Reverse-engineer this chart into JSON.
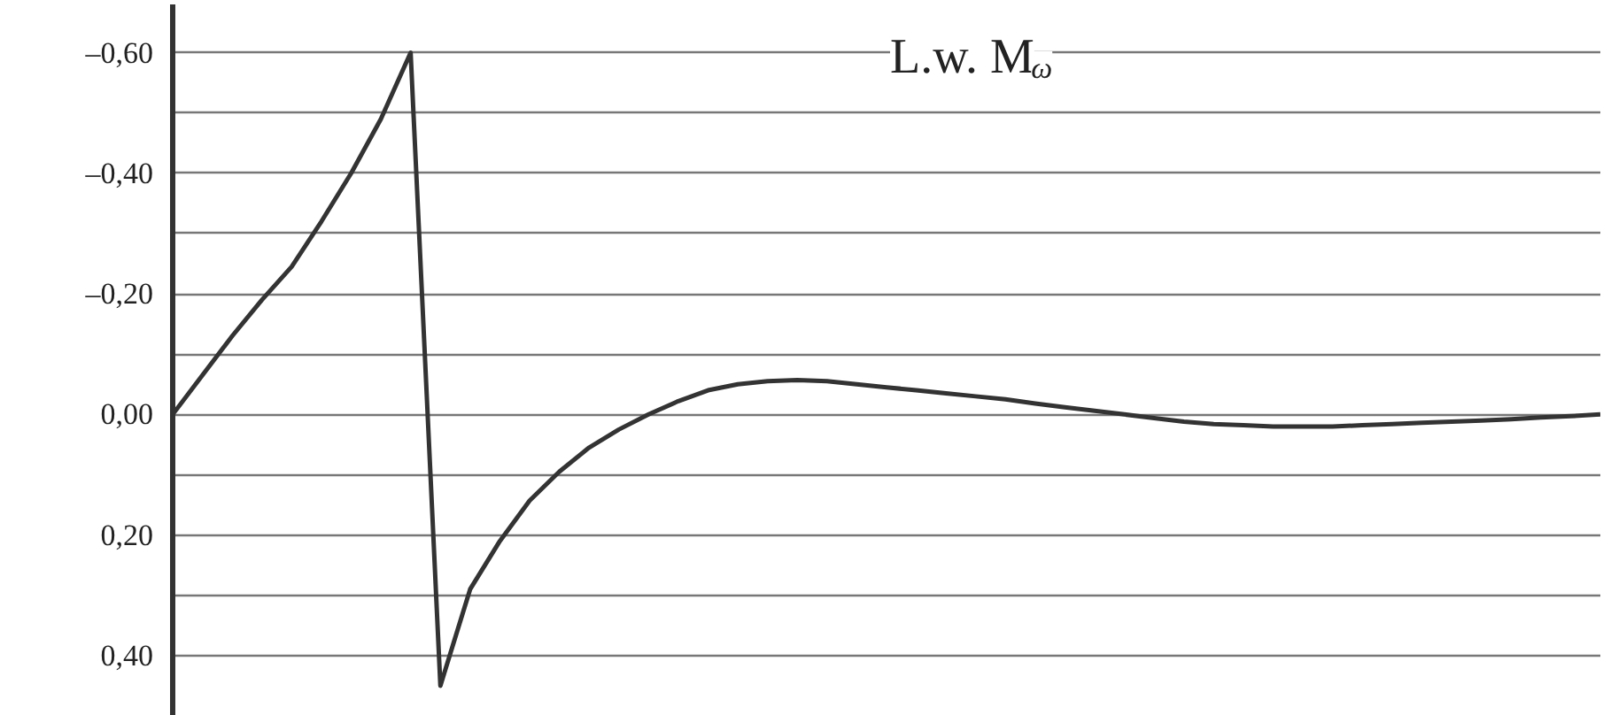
{
  "chart_data": {
    "type": "line",
    "title": "L.w. M$_{ω}$",
    "categories": [
      null,
      null,
      null,
      null,
      null,
      null,
      null,
      null,
      null,
      null,
      null,
      null,
      null,
      null,
      null,
      null,
      null,
      null,
      null,
      null,
      null,
      null,
      null,
      null,
      null,
      null,
      null,
      null,
      null,
      null,
      null,
      null,
      null,
      null,
      null,
      null,
      null,
      null,
      null,
      null,
      null,
      null,
      null,
      null,
      null,
      null,
      null,
      null,
      null
    ],
    "series": [
      {
        "color": "#333333",
        "values": [
          0,
          -0.065,
          -0.13,
          -0.19,
          -0.245,
          -0.32,
          -0.4,
          -0.49,
          -0.6,
          0.45,
          0.29,
          0.21,
          0.143,
          0.095,
          0.055,
          0.025,
          0,
          -0.022,
          -0.04,
          -0.05,
          -0.055,
          -0.057,
          -0.055,
          -0.05,
          -0.045,
          -0.04,
          -0.035,
          -0.03,
          -0.025,
          -0.018,
          -0.012,
          -0.006,
          0,
          0.006,
          0.012,
          0.016,
          0.018,
          0.02,
          0.02,
          0.02,
          0.018,
          0.016,
          0.014,
          0.012,
          0.01,
          0.008,
          0.005,
          0.003,
          0
        ]
      }
    ],
    "ylim": [
      0.5,
      -0.68
    ],
    "yticks": [
      {
        "value": -0.6,
        "label": "–0,60"
      },
      {
        "value": -0.5,
        "label": null
      },
      {
        "value": -0.4,
        "label": "–0,40"
      },
      {
        "value": -0.3,
        "label": null
      },
      {
        "value": -0.2,
        "label": "–0,20"
      },
      {
        "value": -0.1,
        "label": null
      },
      {
        "value": 0,
        "label": "0,00"
      },
      {
        "value": 0.1,
        "label": null
      },
      {
        "value": 0.2,
        "label": "0,20"
      },
      {
        "value": 0.3,
        "label": null
      },
      {
        "value": 0.4,
        "label": "0,40"
      }
    ],
    "tick_labels": "y",
    "grid": "y",
    "marker": "none",
    "line_style": "solid"
  }
}
